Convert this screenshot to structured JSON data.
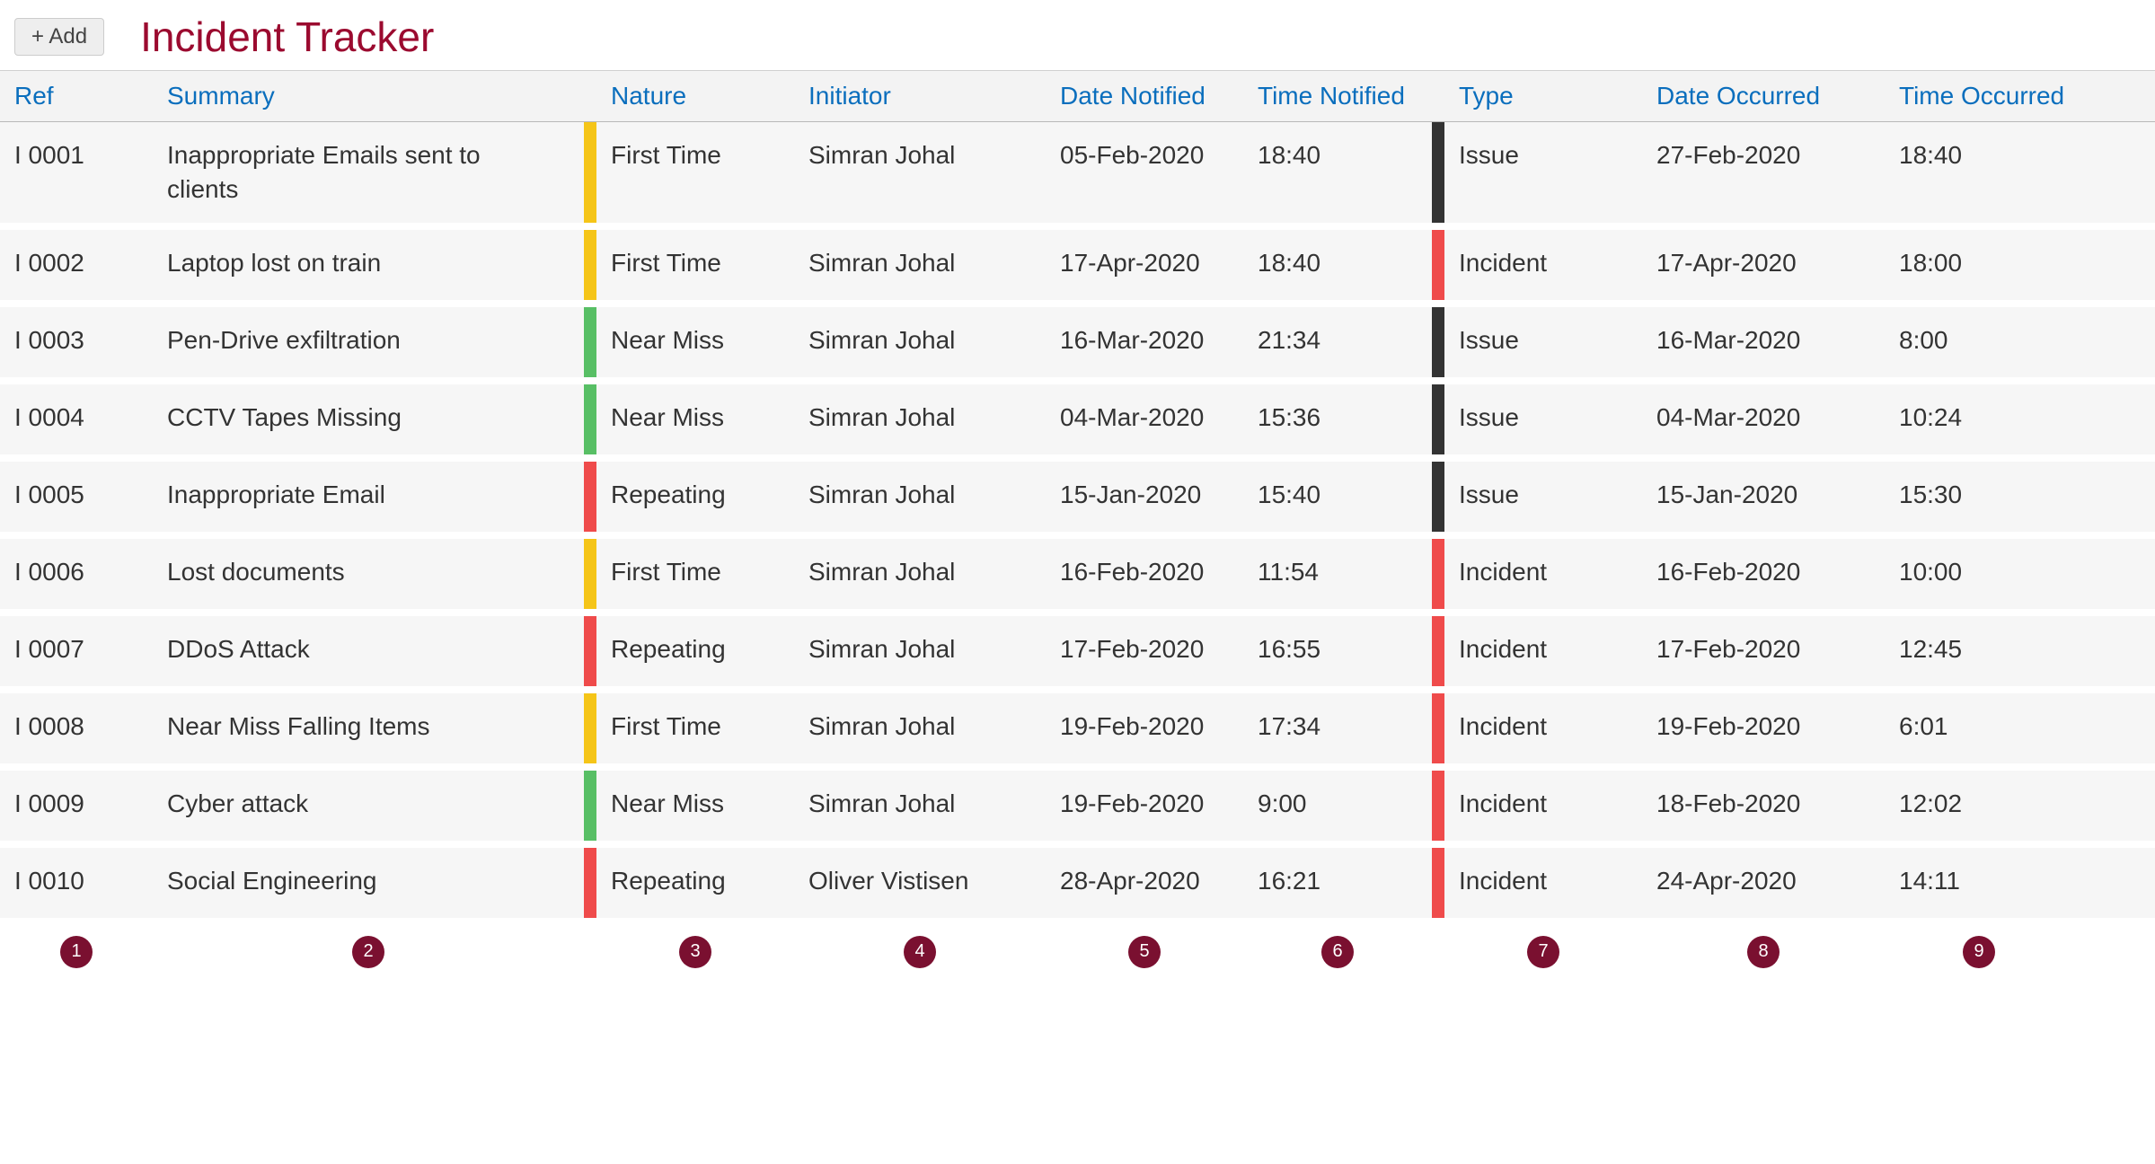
{
  "colors": {
    "title": "#9b0a2f",
    "header_link": "#0a6ebd",
    "row_bg": "#f6f6f6",
    "head_bg": "#f3f3f3",
    "text": "#333333",
    "add_btn_bg": "#eeeeee",
    "add_btn_border": "#cccccc",
    "legend_dot_bg": "#7a1030",
    "nature": {
      "First Time": "#f5c518",
      "Near Miss": "#58bf65",
      "Repeating": "#ef4b4b"
    },
    "type": {
      "Issue": "#333333",
      "Incident": "#ef4b4b"
    }
  },
  "header": {
    "add_label": "+ Add",
    "title": "Incident Tracker"
  },
  "columns": [
    {
      "key": "ref",
      "label": "Ref"
    },
    {
      "key": "summary",
      "label": "Summary"
    },
    {
      "key": "nature",
      "label": "Nature"
    },
    {
      "key": "initiator",
      "label": "Initiator"
    },
    {
      "key": "date_notified",
      "label": "Date Notified"
    },
    {
      "key": "time_notified",
      "label": "Time Notified"
    },
    {
      "key": "type",
      "label": "Type"
    },
    {
      "key": "date_occurred",
      "label": "Date Occurred"
    },
    {
      "key": "time_occurred",
      "label": "Time Occurred"
    }
  ],
  "rows": [
    {
      "ref": "I 0001",
      "summary": "Inappropriate Emails sent to clients",
      "nature": "First Time",
      "initiator": "Simran Johal",
      "date_notified": "05-Feb-2020",
      "time_notified": "18:40",
      "type": "Issue",
      "date_occurred": "27-Feb-2020",
      "time_occurred": "18:40"
    },
    {
      "ref": "I 0002",
      "summary": "Laptop lost on train",
      "nature": "First Time",
      "initiator": "Simran Johal",
      "date_notified": "17-Apr-2020",
      "time_notified": "18:40",
      "type": "Incident",
      "date_occurred": "17-Apr-2020",
      "time_occurred": "18:00"
    },
    {
      "ref": "I 0003",
      "summary": "Pen-Drive exfiltration",
      "nature": "Near Miss",
      "initiator": "Simran Johal",
      "date_notified": "16-Mar-2020",
      "time_notified": "21:34",
      "type": "Issue",
      "date_occurred": "16-Mar-2020",
      "time_occurred": "8:00"
    },
    {
      "ref": "I 0004",
      "summary": "CCTV Tapes Missing",
      "nature": "Near Miss",
      "initiator": "Simran Johal",
      "date_notified": "04-Mar-2020",
      "time_notified": "15:36",
      "type": "Issue",
      "date_occurred": "04-Mar-2020",
      "time_occurred": "10:24"
    },
    {
      "ref": "I 0005",
      "summary": "Inappropriate Email",
      "nature": "Repeating",
      "initiator": "Simran Johal",
      "date_notified": "15-Jan-2020",
      "time_notified": "15:40",
      "type": "Issue",
      "date_occurred": "15-Jan-2020",
      "time_occurred": "15:30"
    },
    {
      "ref": "I 0006",
      "summary": "Lost documents",
      "nature": "First Time",
      "initiator": "Simran Johal",
      "date_notified": "16-Feb-2020",
      "time_notified": "11:54",
      "type": "Incident",
      "date_occurred": "16-Feb-2020",
      "time_occurred": "10:00"
    },
    {
      "ref": "I 0007",
      "summary": "DDoS Attack",
      "nature": "Repeating",
      "initiator": "Simran Johal",
      "date_notified": "17-Feb-2020",
      "time_notified": "16:55",
      "type": "Incident",
      "date_occurred": "17-Feb-2020",
      "time_occurred": "12:45"
    },
    {
      "ref": "I 0008",
      "summary": "Near Miss Falling Items",
      "nature": "First Time",
      "initiator": "Simran Johal",
      "date_notified": "19-Feb-2020",
      "time_notified": "17:34",
      "type": "Incident",
      "date_occurred": "19-Feb-2020",
      "time_occurred": "6:01"
    },
    {
      "ref": "I 0009",
      "summary": "Cyber attack",
      "nature": "Near Miss",
      "initiator": "Simran Johal",
      "date_notified": "19-Feb-2020",
      "time_notified": "9:00",
      "type": "Incident",
      "date_occurred": "18-Feb-2020",
      "time_occurred": "12:02"
    },
    {
      "ref": "I 0010",
      "summary": "Social Engineering",
      "nature": "Repeating",
      "initiator": "Oliver Vistisen",
      "date_notified": "28-Apr-2020",
      "time_notified": "16:21",
      "type": "Incident",
      "date_occurred": "24-Apr-2020",
      "time_occurred": "14:11"
    }
  ],
  "legend_numbers": [
    "1",
    "2",
    "3",
    "4",
    "5",
    "6",
    "7",
    "8",
    "9"
  ]
}
